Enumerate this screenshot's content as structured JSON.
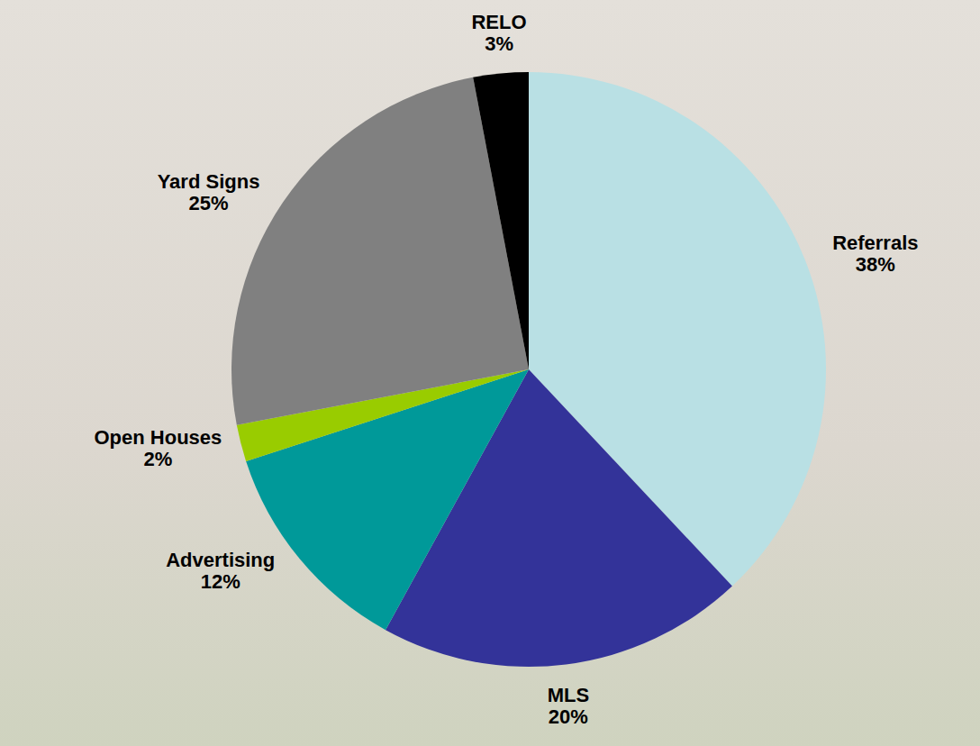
{
  "chart_data": {
    "type": "pie",
    "categories": [
      "Referrals",
      "MLS",
      "Advertising",
      "Open Houses",
      "Yard Signs",
      "RELO"
    ],
    "values": [
      38,
      20,
      12,
      2,
      25,
      3
    ],
    "value_labels": [
      "38%",
      "20%",
      "12%",
      "2%",
      "25%",
      "3%"
    ],
    "colors": [
      "#b9e0e4",
      "#333399",
      "#009999",
      "#99cc00",
      "#808080",
      "#000000"
    ],
    "data_labels": true
  }
}
